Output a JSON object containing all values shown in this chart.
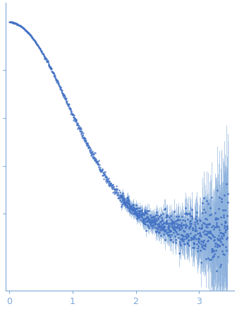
{
  "title": "",
  "xlabel": "",
  "ylabel": "",
  "xlim": [
    -0.05,
    3.55
  ],
  "dot_color": "#4472C4",
  "errorbar_color": "#8BB0DC",
  "background_color": "#ffffff",
  "spine_color": "#7BA7D8",
  "tick_color": "#7BA7D8",
  "label_color": "#7BA7D8",
  "xticks": [
    0,
    1,
    2,
    3
  ],
  "figsize": [
    3.36,
    4.37
  ],
  "dpi": 100,
  "Rg": 0.85,
  "I0": 1.0,
  "baseline": 0.12,
  "noise_transition_q": 1.8,
  "ylim": [
    -0.12,
    1.08
  ]
}
